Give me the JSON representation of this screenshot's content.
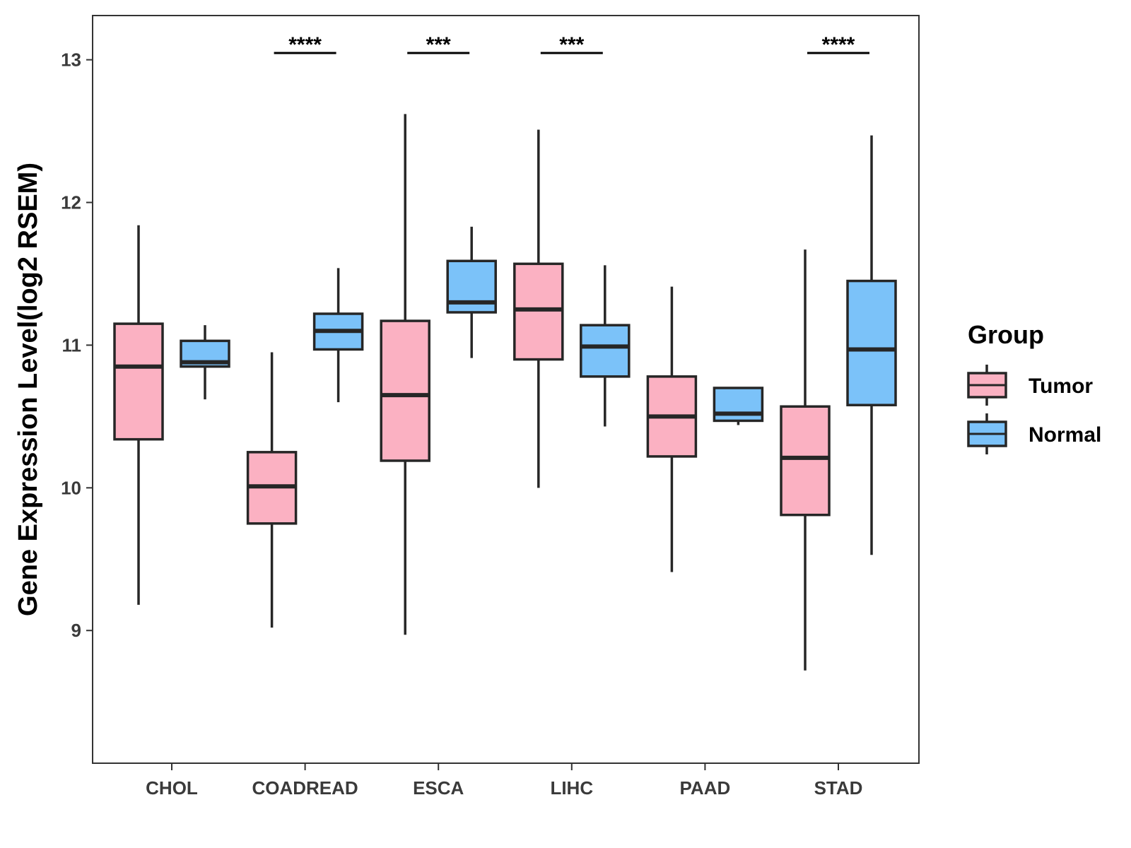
{
  "chart_data": {
    "type": "boxplot",
    "title": "",
    "xlabel": "",
    "ylabel": "Gene Expression Level(log2 RSEM)",
    "ylim": [
      8.07,
      13.31
    ],
    "yticks": [
      "9",
      "10",
      "11",
      "12",
      "13"
    ],
    "categories": [
      "CHOL",
      "COADREAD",
      "ESCA",
      "LIHC",
      "PAAD",
      "STAD"
    ],
    "legend": {
      "title": "Group",
      "position": "right",
      "entries": [
        {
          "name": "Tumor",
          "color": "#FBB1C2"
        },
        {
          "name": "Normal",
          "color": "#7BC2F9"
        }
      ]
    },
    "series": [
      {
        "name": "Tumor",
        "color": "#FBB1C2",
        "boxes": [
          {
            "category": "CHOL",
            "whisker_low": 9.18,
            "q1": 10.34,
            "median": 10.85,
            "q3": 11.15,
            "whisker_high": 11.84
          },
          {
            "category": "COADREAD",
            "whisker_low": 9.02,
            "q1": 9.75,
            "median": 10.01,
            "q3": 10.25,
            "whisker_high": 10.95
          },
          {
            "category": "ESCA",
            "whisker_low": 8.97,
            "q1": 10.19,
            "median": 10.65,
            "q3": 11.17,
            "whisker_high": 12.62
          },
          {
            "category": "LIHC",
            "whisker_low": 10.0,
            "q1": 10.9,
            "median": 11.25,
            "q3": 11.57,
            "whisker_high": 12.51
          },
          {
            "category": "PAAD",
            "whisker_low": 9.41,
            "q1": 10.22,
            "median": 10.5,
            "q3": 10.78,
            "whisker_high": 11.41
          },
          {
            "category": "STAD",
            "whisker_low": 8.72,
            "q1": 9.81,
            "median": 10.21,
            "q3": 10.57,
            "whisker_high": 11.67
          }
        ]
      },
      {
        "name": "Normal",
        "color": "#7BC2F9",
        "boxes": [
          {
            "category": "CHOL",
            "whisker_low": 10.62,
            "q1": 10.85,
            "median": 10.88,
            "q3": 11.03,
            "whisker_high": 11.14
          },
          {
            "category": "COADREAD",
            "whisker_low": 10.6,
            "q1": 10.97,
            "median": 11.1,
            "q3": 11.22,
            "whisker_high": 11.54
          },
          {
            "category": "ESCA",
            "whisker_low": 10.91,
            "q1": 11.23,
            "median": 11.3,
            "q3": 11.59,
            "whisker_high": 11.83
          },
          {
            "category": "LIHC",
            "whisker_low": 10.43,
            "q1": 10.78,
            "median": 10.99,
            "q3": 11.14,
            "whisker_high": 11.56
          },
          {
            "category": "PAAD",
            "whisker_low": 10.44,
            "q1": 10.47,
            "median": 10.52,
            "q3": 10.7,
            "whisker_high": 10.7
          },
          {
            "category": "STAD",
            "whisker_low": 9.53,
            "q1": 10.58,
            "median": 10.97,
            "q3": 11.45,
            "whisker_high": 12.47
          }
        ]
      }
    ],
    "annotations": [
      {
        "category": "COADREAD",
        "label": "****"
      },
      {
        "category": "ESCA",
        "label": "***"
      },
      {
        "category": "LIHC",
        "label": "***"
      },
      {
        "category": "STAD",
        "label": "****"
      }
    ]
  }
}
